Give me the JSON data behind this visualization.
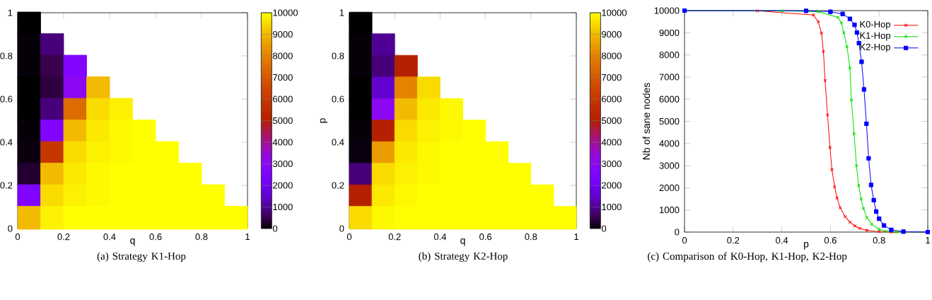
{
  "chart_data": [
    {
      "type": "scatter",
      "xlabel": "q",
      "annotations": [
        "(a) Strategy K1-Hop"
      ],
      "marker": "square",
      "xlim": [
        0,
        1
      ],
      "ylim": [
        0,
        1
      ],
      "xticks": [
        0,
        0.2,
        0.4,
        0.6,
        0.8,
        1
      ],
      "yticks": [
        0,
        0.2,
        0.4,
        0.6,
        0.8,
        1
      ],
      "clim": [
        0,
        10000
      ],
      "cticks": [
        0,
        1000,
        2000,
        3000,
        4000,
        5000,
        6000,
        7000,
        8000,
        9000,
        10000
      ],
      "x": [
        0.05,
        0.05,
        0.15,
        0.05,
        0.15,
        0.25,
        0.05,
        0.15,
        0.25,
        0.35,
        0.05,
        0.15,
        0.25,
        0.35,
        0.45,
        0.05,
        0.15,
        0.25,
        0.35,
        0.45,
        0.55,
        0.05,
        0.15,
        0.25,
        0.35,
        0.45,
        0.55,
        0.65,
        0.05,
        0.15,
        0.25,
        0.35,
        0.45,
        0.55,
        0.65,
        0.75,
        0.05,
        0.15,
        0.25,
        0.35,
        0.45,
        0.55,
        0.65,
        0.75,
        0.85,
        0.05,
        0.15,
        0.25,
        0.35,
        0.45,
        0.55,
        0.65,
        0.75,
        0.85,
        0.95
      ],
      "values": [
        0.95,
        0.85,
        0.85,
        0.75,
        0.75,
        0.75,
        0.65,
        0.65,
        0.65,
        0.65,
        0.55,
        0.55,
        0.55,
        0.55,
        0.55,
        0.45,
        0.45,
        0.45,
        0.45,
        0.45,
        0.45,
        0.35,
        0.35,
        0.35,
        0.35,
        0.35,
        0.35,
        0.35,
        0.25,
        0.25,
        0.25,
        0.25,
        0.25,
        0.25,
        0.25,
        0.25,
        0.15,
        0.15,
        0.15,
        0.15,
        0.15,
        0.15,
        0.15,
        0.15,
        0.15,
        0.05,
        0.05,
        0.05,
        0.05,
        0.05,
        0.05,
        0.05,
        0.05,
        0.05,
        0.05
      ],
      "cvalues": [
        0,
        50,
        800,
        50,
        500,
        2500,
        0,
        400,
        3000,
        9000,
        0,
        800,
        7500,
        9500,
        9800,
        50,
        2500,
        9000,
        9700,
        9900,
        10000,
        100,
        6000,
        9500,
        9800,
        9900,
        10000,
        10000,
        300,
        9000,
        9700,
        9900,
        10000,
        10000,
        10000,
        10000,
        2500,
        9500,
        9800,
        9900,
        10000,
        10000,
        10000,
        10000,
        10000,
        9000,
        9800,
        10000,
        10000,
        10000,
        10000,
        10000,
        10000,
        10000,
        10000
      ]
    },
    {
      "type": "scatter",
      "xlabel": "q",
      "ylabel": "p",
      "annotations": [
        "(b) Strategy K2-Hop"
      ],
      "marker": "square",
      "xlim": [
        0,
        1
      ],
      "ylim": [
        0,
        1
      ],
      "xticks": [
        0,
        0.2,
        0.4,
        0.6,
        0.8,
        1
      ],
      "yticks": [
        0,
        0.2,
        0.4,
        0.6,
        0.8,
        1
      ],
      "clim": [
        0,
        10000
      ],
      "cticks": [
        0,
        1000,
        2000,
        3000,
        4000,
        5000,
        6000,
        7000,
        8000,
        9000,
        10000
      ],
      "x": [
        0.05,
        0.05,
        0.15,
        0.05,
        0.15,
        0.25,
        0.05,
        0.15,
        0.25,
        0.35,
        0.05,
        0.15,
        0.25,
        0.35,
        0.45,
        0.05,
        0.15,
        0.25,
        0.35,
        0.45,
        0.55,
        0.05,
        0.15,
        0.25,
        0.35,
        0.45,
        0.55,
        0.65,
        0.05,
        0.15,
        0.25,
        0.35,
        0.45,
        0.55,
        0.65,
        0.75,
        0.05,
        0.15,
        0.25,
        0.35,
        0.45,
        0.55,
        0.65,
        0.75,
        0.85,
        0.05,
        0.15,
        0.25,
        0.35,
        0.45,
        0.55,
        0.65,
        0.75,
        0.85,
        0.95
      ],
      "values": [
        0.95,
        0.85,
        0.85,
        0.75,
        0.75,
        0.75,
        0.65,
        0.65,
        0.65,
        0.65,
        0.55,
        0.55,
        0.55,
        0.55,
        0.55,
        0.45,
        0.45,
        0.45,
        0.45,
        0.45,
        0.45,
        0.35,
        0.35,
        0.35,
        0.35,
        0.35,
        0.35,
        0.35,
        0.25,
        0.25,
        0.25,
        0.25,
        0.25,
        0.25,
        0.25,
        0.25,
        0.15,
        0.15,
        0.15,
        0.15,
        0.15,
        0.15,
        0.15,
        0.15,
        0.15,
        0.05,
        0.05,
        0.05,
        0.05,
        0.05,
        0.05,
        0.05,
        0.05,
        0.05,
        0.05
      ],
      "cvalues": [
        0,
        50,
        1000,
        50,
        800,
        5000,
        0,
        1500,
        8000,
        9500,
        0,
        3000,
        9000,
        9700,
        9900,
        50,
        5000,
        9500,
        9800,
        9900,
        10000,
        100,
        8500,
        9700,
        9900,
        10000,
        10000,
        10000,
        800,
        9500,
        9800,
        9900,
        10000,
        10000,
        10000,
        10000,
        5000,
        9700,
        9900,
        10000,
        10000,
        10000,
        10000,
        10000,
        10000,
        9500,
        9900,
        10000,
        10000,
        10000,
        10000,
        10000,
        10000,
        10000,
        10000
      ]
    },
    {
      "type": "line",
      "xlabel": "p",
      "ylabel": "Nb of sane nodes",
      "annotations": [
        "(c) Comparison of K0-Hop, K1-Hop, K2-Hop"
      ],
      "xlim": [
        0,
        1
      ],
      "ylim": [
        0,
        10000
      ],
      "xticks": [
        0,
        0.2,
        0.4,
        0.6,
        0.8,
        1
      ],
      "yticks": [
        0,
        1000,
        2000,
        3000,
        4000,
        5000,
        6000,
        7000,
        8000,
        9000,
        10000
      ],
      "legend": "top right",
      "series": [
        {
          "name": "K0-Hop",
          "color": "#ff0000",
          "marker": "cross",
          "x": [
            0,
            0.3,
            0.53,
            0.55,
            0.563,
            0.571,
            0.578,
            0.588,
            0.598,
            0.606,
            0.617,
            0.627,
            0.64,
            0.66,
            0.68,
            0.7,
            0.72,
            0.75,
            0.8,
            0.85,
            1
          ],
          "values": [
            9990,
            9990,
            9800,
            9500,
            8990,
            8160,
            6840,
            5290,
            3820,
            2820,
            2050,
            1540,
            1100,
            700,
            450,
            280,
            170,
            80,
            20,
            0,
            0
          ]
        },
        {
          "name": "K1-Hop",
          "color": "#00e000",
          "marker": "cross",
          "x": [
            0,
            0.4,
            0.55,
            0.63,
            0.645,
            0.655,
            0.668,
            0.68,
            0.686,
            0.697,
            0.707,
            0.716,
            0.726,
            0.736,
            0.75,
            0.77,
            0.8,
            0.83,
            0.87,
            1
          ],
          "values": [
            10000,
            9990,
            9950,
            9700,
            9450,
            9000,
            8370,
            7410,
            5960,
            4440,
            3000,
            2100,
            1490,
            1060,
            650,
            350,
            120,
            30,
            0,
            0
          ]
        },
        {
          "name": "K2-Hop",
          "color": "#0000ff",
          "marker": "square",
          "x": [
            0,
            0.5,
            0.6,
            0.65,
            0.68,
            0.699,
            0.709,
            0.717,
            0.728,
            0.738,
            0.748,
            0.757,
            0.767,
            0.778,
            0.788,
            0.8,
            0.82,
            0.85,
            0.9,
            1
          ],
          "values": [
            10000,
            9990,
            9950,
            9850,
            9630,
            9360,
            9010,
            8530,
            7690,
            6440,
            4890,
            3330,
            2130,
            1440,
            930,
            600,
            300,
            100,
            20,
            0
          ]
        }
      ]
    }
  ]
}
